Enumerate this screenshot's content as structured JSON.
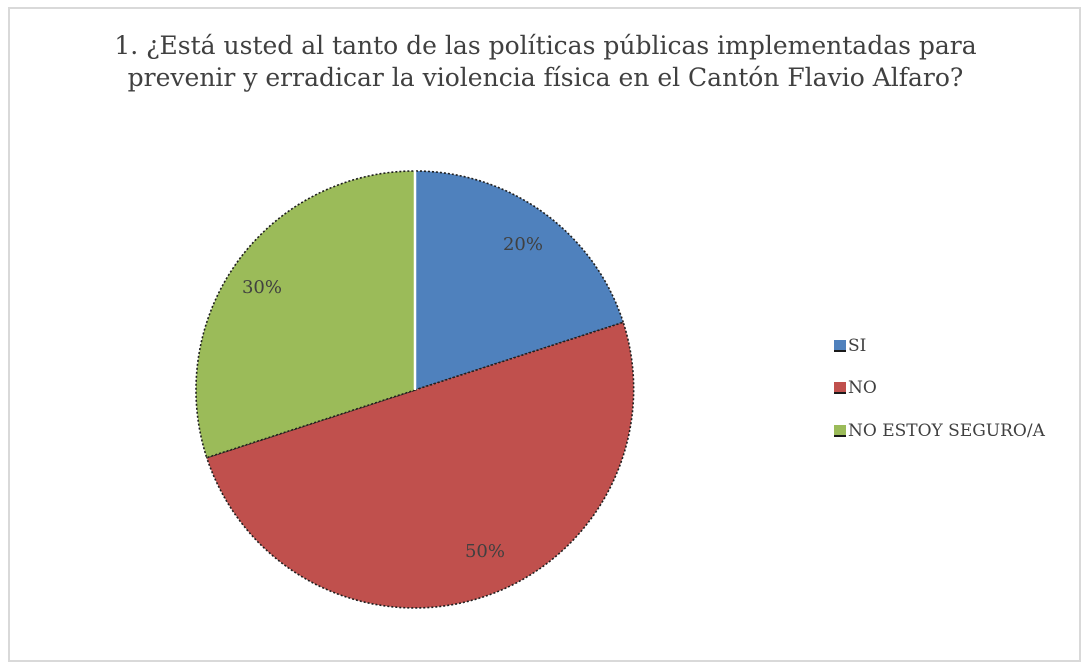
{
  "chart_data": {
    "type": "pie",
    "title_lines": [
      "1. ¿Está usted al tanto de las políticas públicas implementadas para",
      "prevenir y erradicar la violencia física en el Cantón Flavio Alfaro?"
    ],
    "slices": [
      {
        "label": "SI",
        "value": 20,
        "display": "20%",
        "color": "#4f81bd"
      },
      {
        "label": "NO",
        "value": 50,
        "display": "50%",
        "color": "#c0504d"
      },
      {
        "label": "NO ESTOY SEGURO/A",
        "value": 30,
        "display": "30%",
        "color": "#9bbb59"
      }
    ],
    "legend_position": "right"
  }
}
